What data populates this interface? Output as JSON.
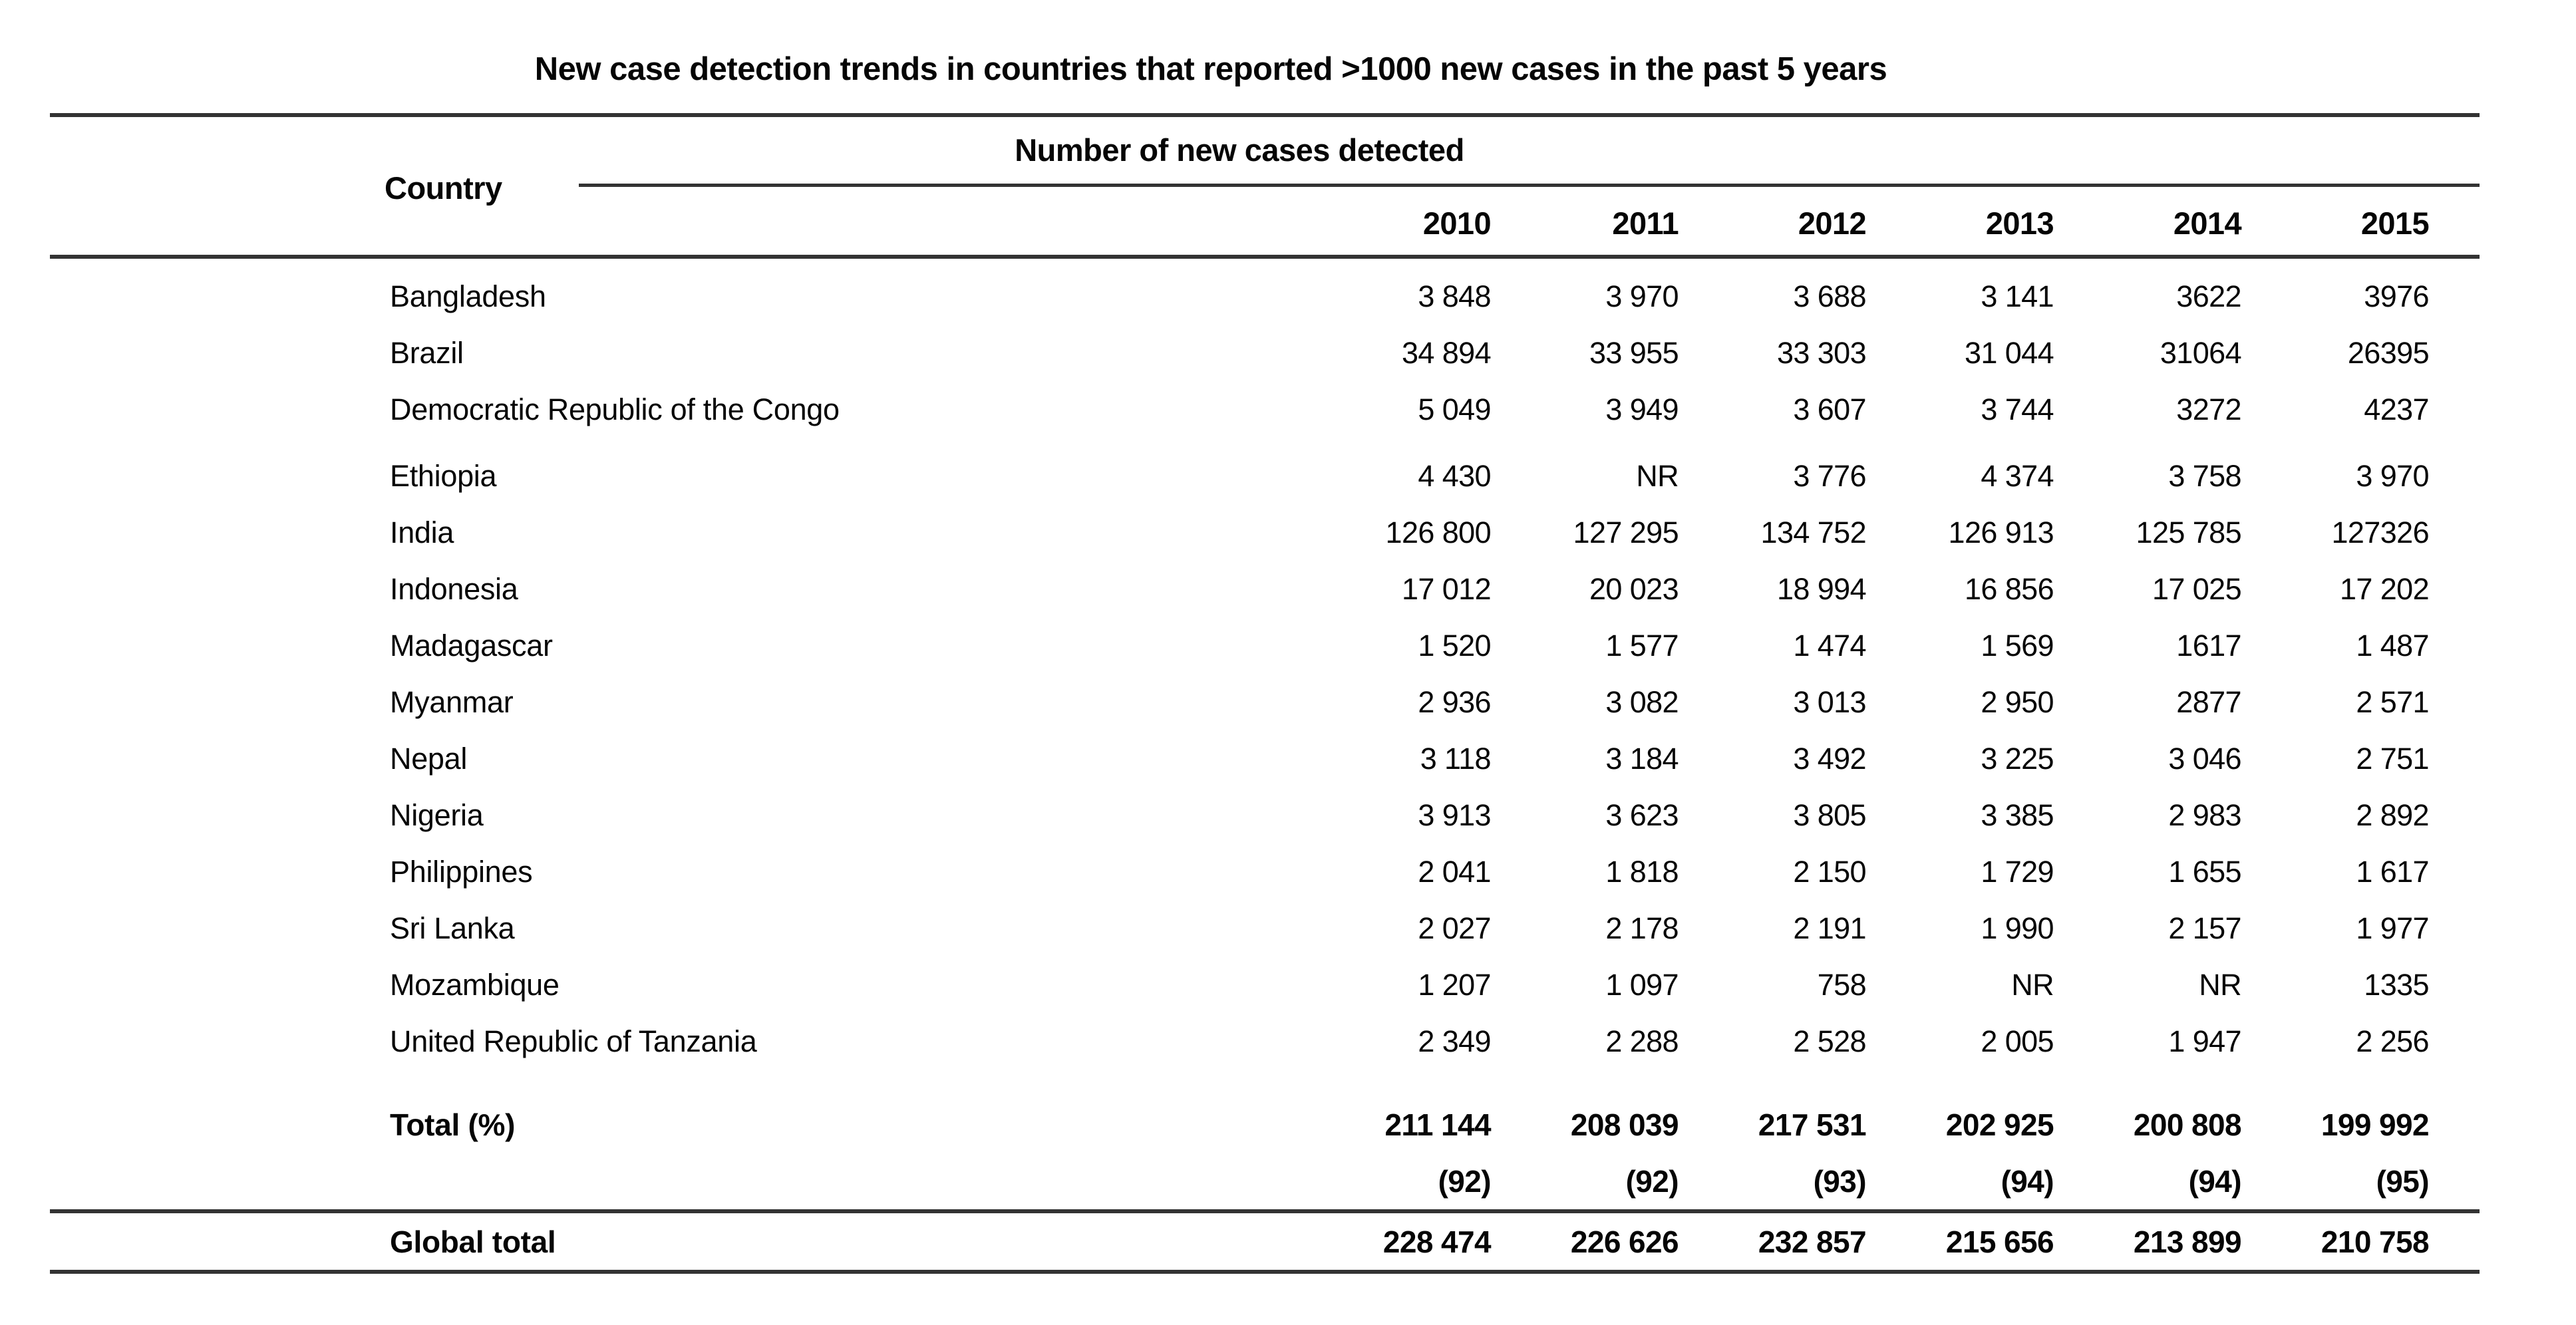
{
  "title": "New case detection trends in countries that reported >1000 new cases in the past 5 years",
  "colors": {
    "background": "#ffffff",
    "text": "#050505",
    "rule": "#333333"
  },
  "chart_data": {
    "type": "table",
    "title": "New case detection trends in countries that reported >1000 new cases in the past 5 years",
    "span_header": "Number of new cases detected",
    "country_header": "Country",
    "years": [
      "2010",
      "2011",
      "2012",
      "2013",
      "2014",
      "2015"
    ],
    "rows": [
      {
        "country": "Bangladesh",
        "values": [
          "3 848",
          "3 970",
          "3 688",
          "3 141",
          "3622",
          "3976"
        ]
      },
      {
        "country": "Brazil",
        "values": [
          "34 894",
          "33 955",
          "33 303",
          "31 044",
          "31064",
          "26395"
        ]
      },
      {
        "country": "Democratic Republic of the Congo",
        "values": [
          "5 049",
          "3 949",
          "3 607",
          "3 744",
          "3272",
          "4237"
        ]
      },
      {
        "country": "Ethiopia",
        "gap_before": true,
        "values": [
          "4 430",
          "NR",
          "3 776",
          "4 374",
          "3 758",
          "3 970"
        ]
      },
      {
        "country": "India",
        "values": [
          "126 800",
          "127 295",
          "134 752",
          "126 913",
          "125 785",
          "127326"
        ]
      },
      {
        "country": "Indonesia",
        "values": [
          "17 012",
          "20 023",
          "18 994",
          "16 856",
          "17 025",
          "17 202"
        ]
      },
      {
        "country": "Madagascar",
        "values": [
          "1 520",
          "1 577",
          "1 474",
          "1 569",
          "1617",
          "1 487"
        ]
      },
      {
        "country": "Myanmar",
        "values": [
          "2 936",
          "3 082",
          "3 013",
          "2 950",
          "2877",
          "2 571"
        ]
      },
      {
        "country": "Nepal",
        "values": [
          "3 118",
          "3 184",
          "3 492",
          "3 225",
          "3 046",
          "2 751"
        ]
      },
      {
        "country": "Nigeria",
        "values": [
          "3 913",
          "3 623",
          "3 805",
          "3 385",
          "2 983",
          "2 892"
        ]
      },
      {
        "country": "Philippines",
        "values": [
          "2 041",
          "1 818",
          "2 150",
          "1 729",
          "1 655",
          "1 617"
        ]
      },
      {
        "country": "Sri Lanka",
        "values": [
          "2 027",
          "2 178",
          "2 191",
          "1 990",
          "2 157",
          "1 977"
        ]
      },
      {
        "country": "Mozambique",
        "values": [
          "1 207",
          "1 097",
          "758",
          "NR",
          "NR",
          "1335"
        ]
      },
      {
        "country": "United Republic of Tanzania",
        "values": [
          "2 349",
          "2 288",
          "2 528",
          "2 005",
          "1 947",
          "2 256"
        ]
      }
    ],
    "total_row": {
      "label": "Total (%)",
      "values": [
        "211 144",
        "208 039",
        "217 531",
        "202 925",
        "200 808",
        "199 992"
      ]
    },
    "percent_row": {
      "values": [
        "(92)",
        "(92)",
        "(93)",
        "(94)",
        "(94)",
        "(95)"
      ]
    },
    "global_row": {
      "label": "Global total",
      "values": [
        "228 474",
        "226 626",
        "232 857",
        "215 656",
        "213 899",
        "210 758"
      ]
    }
  }
}
